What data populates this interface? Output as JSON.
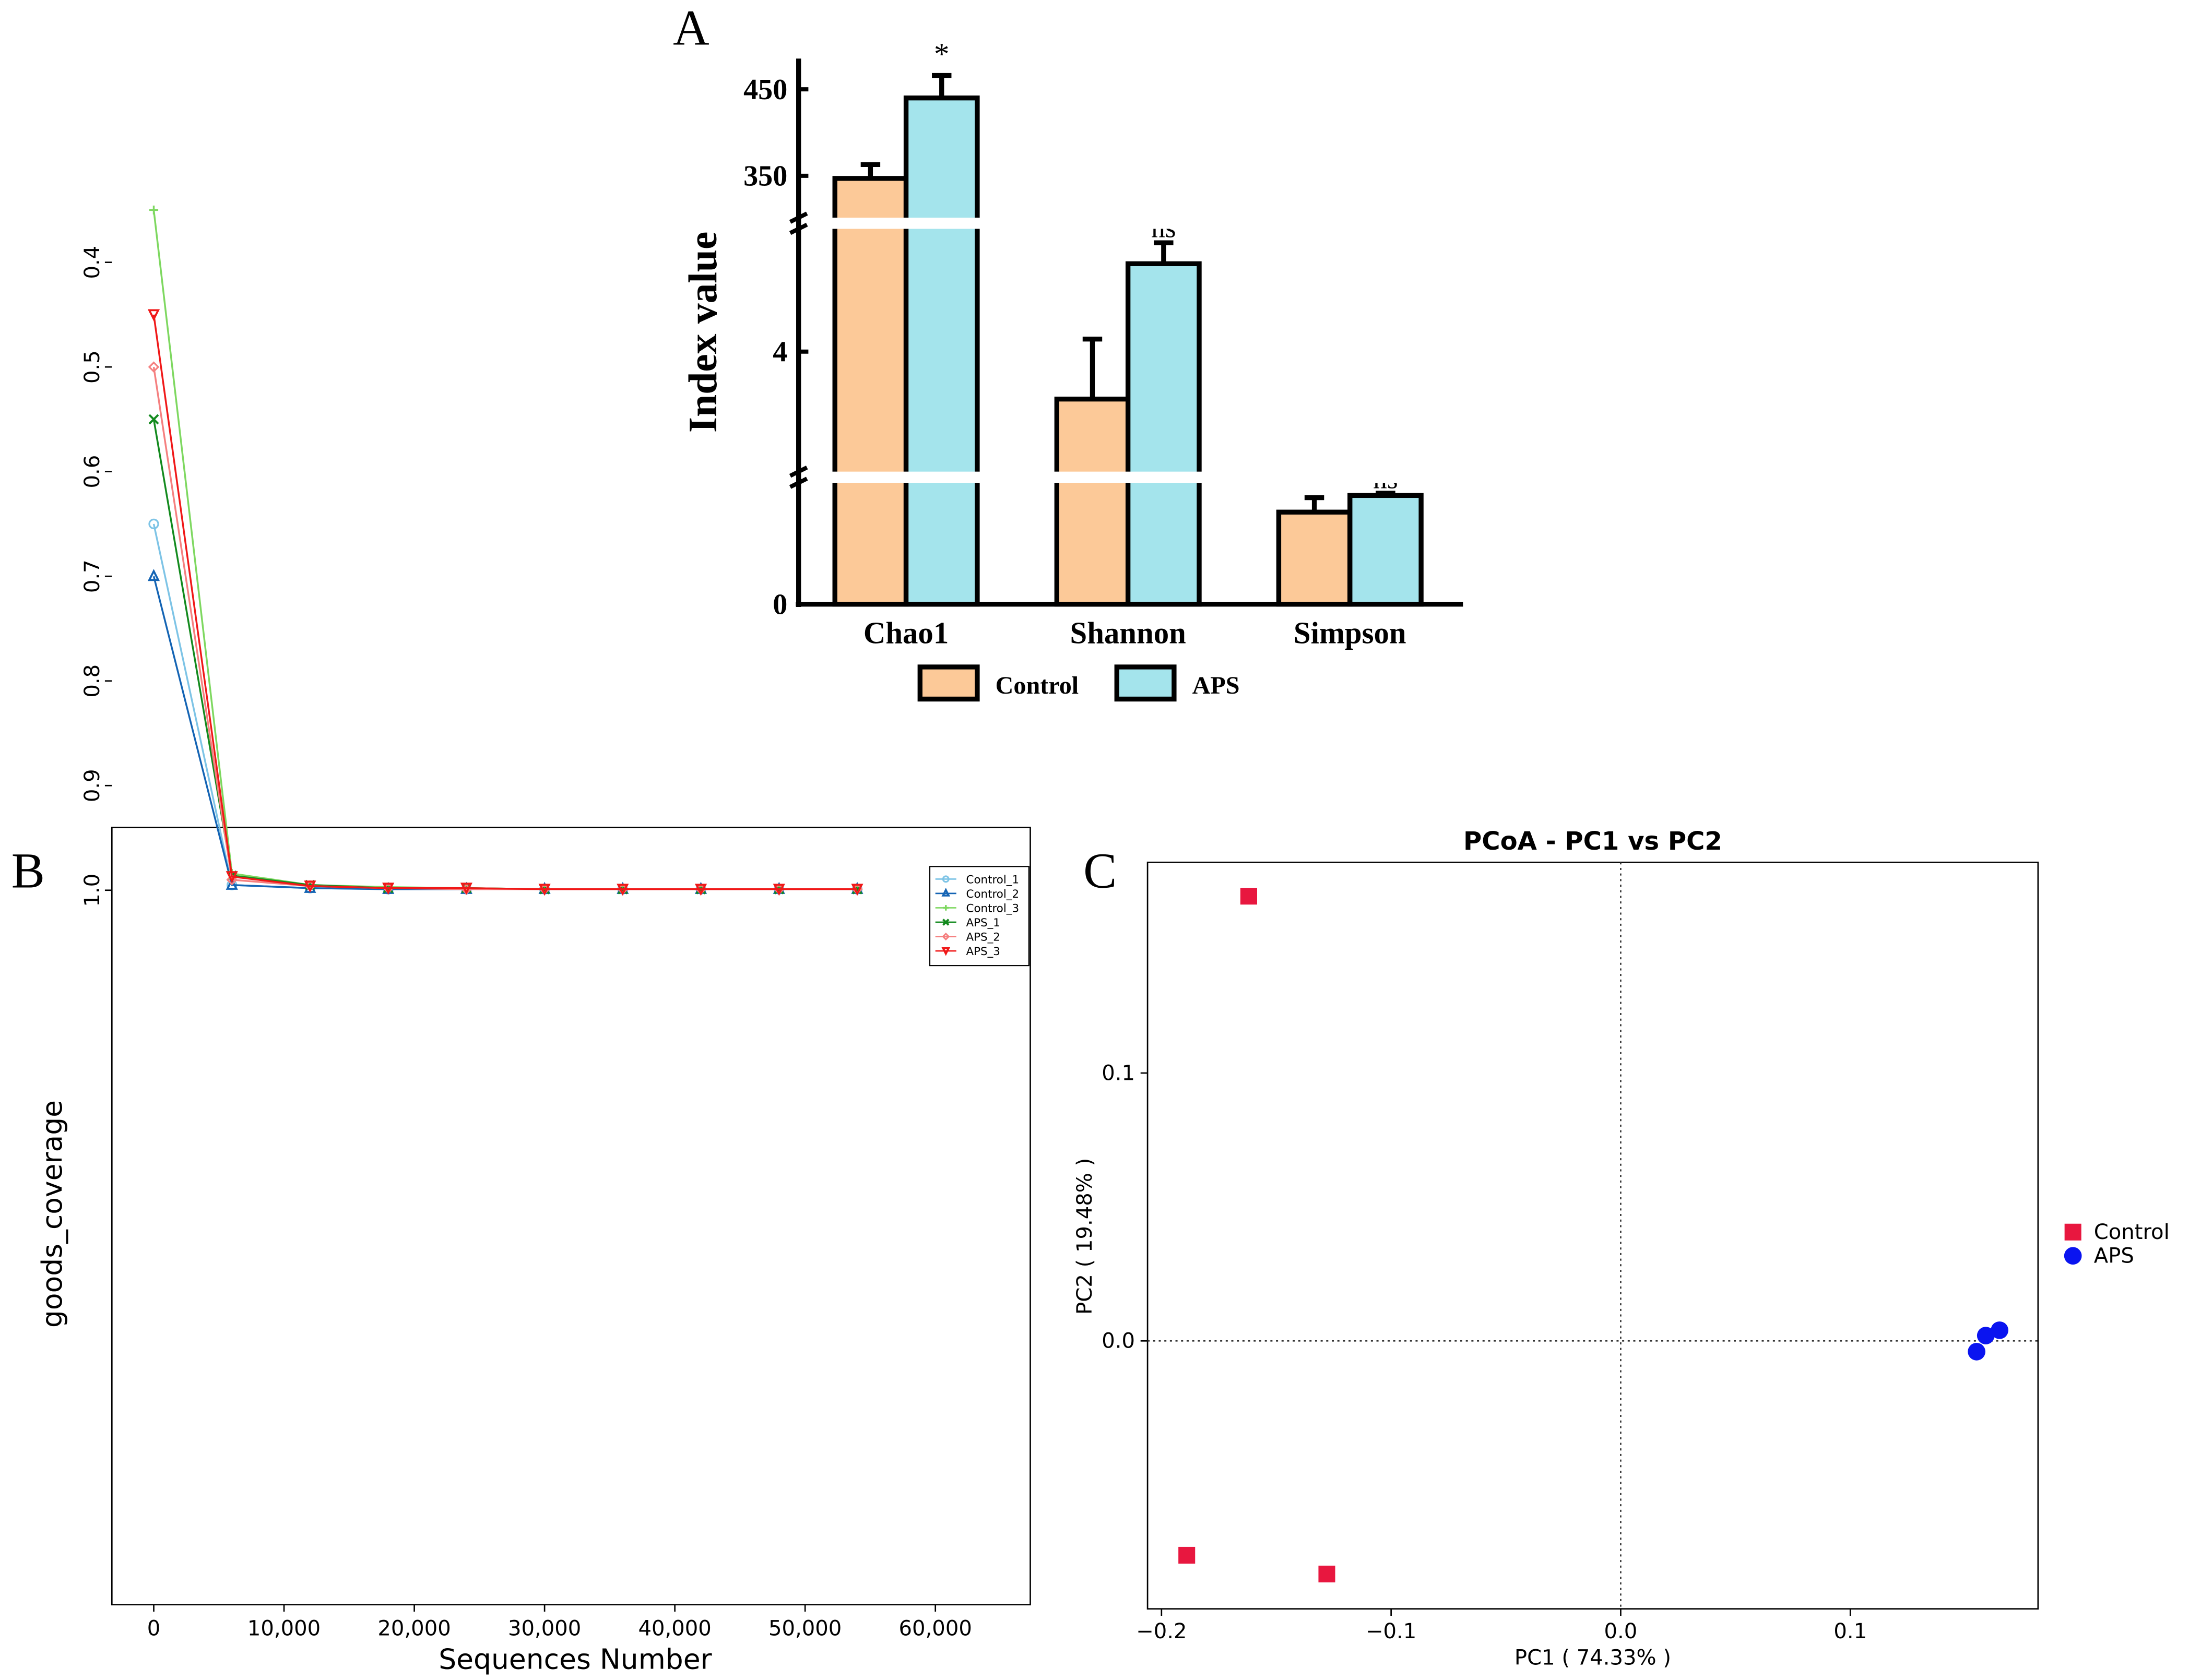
{
  "chart_data": [
    {
      "panel": "A",
      "type": "bar",
      "ylabel": "Index value",
      "categories": [
        "Chao1",
        "Shannon",
        "Simpson"
      ],
      "yticks": [
        "0",
        "4",
        "350",
        "450"
      ],
      "series": [
        {
          "name": "Control",
          "color": "#fcc998",
          "values": [
            347,
            3.66,
            0.83
          ],
          "errors": [
            16,
            0.43,
            0.13
          ]
        },
        {
          "name": "APS",
          "color": "#a4e4ec",
          "values": [
            440,
            4.63,
            0.98
          ],
          "errors": [
            26,
            0.15,
            0.02
          ]
        }
      ],
      "significance": [
        "*",
        "ns",
        "ns"
      ],
      "axis_break": true
    },
    {
      "panel": "B",
      "type": "line",
      "xlabel": "Sequences Number",
      "ylabel": "goods_coverage",
      "xlim": [
        0,
        66000
      ],
      "ylim": [
        0.33,
        1.03
      ],
      "xticks": [
        "0",
        "10,000",
        "20,000",
        "30,000",
        "40,000",
        "50,000",
        "60,000"
      ],
      "yticks": [
        "0.4",
        "0.5",
        "0.6",
        "0.7",
        "0.8",
        "0.9",
        "1.0"
      ],
      "x": [
        0,
        6000,
        12000,
        18000,
        24000,
        30000,
        36000,
        42000,
        48000,
        54000
      ],
      "series": [
        {
          "name": "Control_1",
          "color": "#7ec4e6",
          "marker": "circle",
          "values": [
            0.65,
            0.995,
            0.998,
            0.999,
            0.999,
            0.999,
            0.999,
            0.999,
            0.999,
            0.999
          ]
        },
        {
          "name": "Control_2",
          "color": "#1464b4",
          "marker": "triangle",
          "values": [
            0.7,
            0.995,
            0.998,
            0.999,
            0.999,
            0.999,
            0.999,
            0.999,
            0.999,
            0.999
          ]
        },
        {
          "name": "Control_3",
          "color": "#7ed860",
          "marker": "plus",
          "values": [
            0.35,
            0.984,
            0.995,
            0.997,
            0.998,
            0.999,
            0.999,
            0.999,
            0.999,
            0.999
          ]
        },
        {
          "name": "APS_1",
          "color": "#138a1e",
          "marker": "x",
          "values": [
            0.55,
            0.986,
            0.995,
            0.998,
            0.998,
            0.999,
            0.999,
            0.999,
            0.999,
            0.999
          ]
        },
        {
          "name": "APS_2",
          "color": "#f58080",
          "marker": "diamond",
          "values": [
            0.5,
            0.99,
            0.996,
            0.998,
            0.999,
            0.999,
            0.999,
            0.999,
            0.999,
            0.999
          ]
        },
        {
          "name": "APS_3",
          "color": "#f01818",
          "marker": "triangle-down",
          "values": [
            0.45,
            0.987,
            0.996,
            0.998,
            0.998,
            0.999,
            0.999,
            0.999,
            0.999,
            0.999
          ]
        }
      ]
    },
    {
      "panel": "C",
      "type": "scatter",
      "title": "PCoA - PC1 vs PC2",
      "xlabel": "PC1 ( 74.33% )",
      "ylabel": "PC2 ( 19.48% )",
      "xlim": [
        -0.206,
        0.183
      ],
      "ylim": [
        -0.1,
        0.178
      ],
      "xticks": [
        -0.2,
        -0.1,
        0.0,
        0.1
      ],
      "xtick_labels": [
        "−0.2",
        "−0.1",
        "0.0",
        "0.1"
      ],
      "yticks": [
        0.0,
        0.1
      ],
      "ytick_labels": [
        "0.0",
        "0.1"
      ],
      "legend": "right",
      "series": [
        {
          "name": "Control",
          "color": "#e8173f",
          "marker": "square",
          "points": [
            [
              -0.162,
              0.166
            ],
            [
              -0.189,
              -0.08
            ],
            [
              -0.128,
              -0.087
            ]
          ]
        },
        {
          "name": "APS",
          "color": "#0a14f0",
          "marker": "circle",
          "points": [
            [
              0.155,
              -0.004
            ],
            [
              0.159,
              0.002
            ],
            [
              0.165,
              0.004
            ]
          ]
        }
      ]
    }
  ],
  "panel_labels": [
    "A",
    "B",
    "C"
  ]
}
